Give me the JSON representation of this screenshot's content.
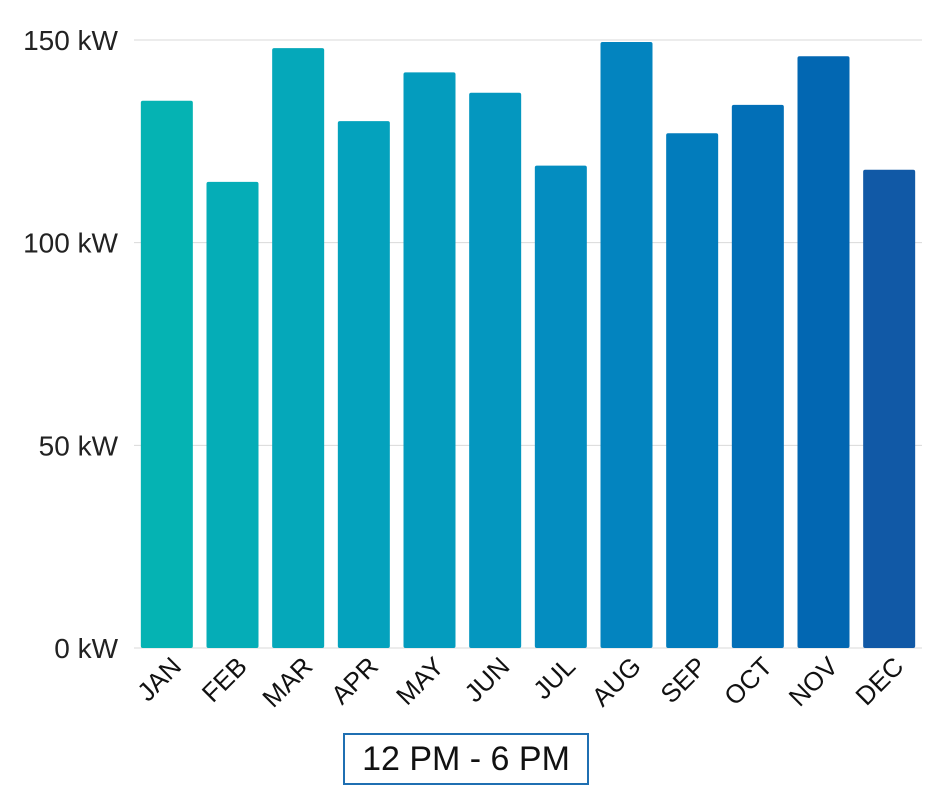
{
  "chart_data": {
    "type": "bar",
    "categories": [
      "JAN",
      "FEB",
      "MAR",
      "APR",
      "MAY",
      "JUN",
      "JUL",
      "AUG",
      "SEP",
      "OCT",
      "NOV",
      "DEC"
    ],
    "series": [
      {
        "name": "12 PM - 6 PM",
        "values": [
          135,
          115,
          148,
          130,
          142,
          137,
          119,
          149.5,
          127,
          134,
          146,
          118
        ]
      }
    ],
    "y_ticks": [
      "0 kW",
      "50 kW",
      "100 kW",
      "150 kW"
    ],
    "y_tick_values": [
      0,
      50,
      100,
      150
    ],
    "ylim": [
      0,
      150
    ],
    "grid": true,
    "legend": "bottom-center",
    "bar_colors": [
      "#05b3b3",
      "#05adb7",
      "#05a8ba",
      "#04a2bd",
      "#049cbe",
      "#0497bf",
      "#048dc0",
      "#0384bf",
      "#027cbc",
      "#026fb7",
      "#0267b2",
      "#1159a6"
    ],
    "grid_color": "#d9d9d9",
    "legend_border_color": "#1f6fb2"
  },
  "legend_label": "12 PM - 6 PM"
}
